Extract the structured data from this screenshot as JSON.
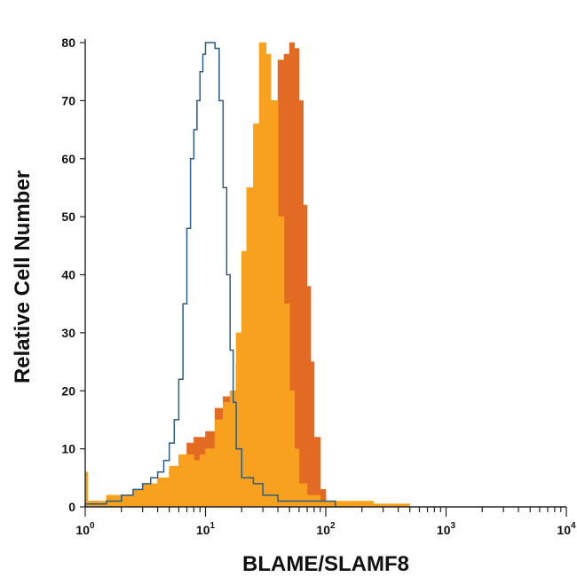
{
  "chart_data": {
    "type": "area",
    "title": "",
    "xlabel": "BLAME/SLAMF8",
    "ylabel": "Relative Cell Number",
    "x_scale": "log",
    "xlim": [
      1,
      10000
    ],
    "ylim": [
      0,
      80
    ],
    "grid": false,
    "legend": "none",
    "x_ticks": [
      {
        "value": 1,
        "base": "10",
        "exp": "0"
      },
      {
        "value": 10,
        "base": "10",
        "exp": "1"
      },
      {
        "value": 100,
        "base": "10",
        "exp": "2"
      },
      {
        "value": 1000,
        "base": "10",
        "exp": "3"
      },
      {
        "value": 10000,
        "base": "10",
        "exp": "4"
      }
    ],
    "y_ticks": [
      "0",
      "10",
      "20",
      "30",
      "40",
      "50",
      "60",
      "70",
      "80"
    ],
    "series": [
      {
        "style": "filled",
        "color": "#e26a22",
        "points": [
          [
            1,
            0
          ],
          [
            1.1,
            1
          ],
          [
            1.3,
            0.5
          ],
          [
            1.5,
            1
          ],
          [
            2,
            1.5
          ],
          [
            2.5,
            2
          ],
          [
            3,
            3
          ],
          [
            3.5,
            4
          ],
          [
            4,
            5
          ],
          [
            5,
            6
          ],
          [
            6,
            8
          ],
          [
            7,
            11
          ],
          [
            8,
            12
          ],
          [
            9,
            12
          ],
          [
            10,
            13
          ],
          [
            12,
            17
          ],
          [
            14,
            19
          ],
          [
            16,
            20
          ],
          [
            18,
            25
          ],
          [
            20,
            32
          ],
          [
            25,
            45
          ],
          [
            30,
            60
          ],
          [
            35,
            70
          ],
          [
            40,
            77
          ],
          [
            45,
            78
          ],
          [
            50,
            80
          ],
          [
            55,
            79
          ],
          [
            60,
            70
          ],
          [
            65,
            52
          ],
          [
            70,
            38
          ],
          [
            75,
            25
          ],
          [
            80,
            12
          ],
          [
            90,
            3
          ],
          [
            100,
            1
          ],
          [
            110,
            0
          ]
        ]
      },
      {
        "style": "filled",
        "color": "#f8a11e",
        "points": [
          [
            1,
            6
          ],
          [
            1.05,
            1
          ],
          [
            1.3,
            1
          ],
          [
            1.5,
            2
          ],
          [
            2,
            2
          ],
          [
            2.5,
            3
          ],
          [
            3,
            4
          ],
          [
            4,
            5
          ],
          [
            5,
            7
          ],
          [
            6,
            9
          ],
          [
            7,
            9
          ],
          [
            8,
            8
          ],
          [
            9,
            9
          ],
          [
            10,
            10
          ],
          [
            12,
            15
          ],
          [
            14,
            18
          ],
          [
            16,
            20
          ],
          [
            18,
            30
          ],
          [
            20,
            44
          ],
          [
            22,
            55
          ],
          [
            25,
            66
          ],
          [
            28,
            80
          ],
          [
            30,
            80
          ],
          [
            32,
            78
          ],
          [
            35,
            70
          ],
          [
            40,
            50
          ],
          [
            45,
            35
          ],
          [
            50,
            20
          ],
          [
            55,
            10
          ],
          [
            60,
            4
          ],
          [
            70,
            2
          ],
          [
            90,
            1
          ],
          [
            150,
            1
          ],
          [
            250,
            0.5
          ],
          [
            500,
            0.5
          ]
        ]
      },
      {
        "style": "outline",
        "color": "#2b5c82",
        "points": [
          [
            1,
            0.5
          ],
          [
            1.5,
            1
          ],
          [
            2,
            2
          ],
          [
            2.5,
            3
          ],
          [
            3,
            4
          ],
          [
            3.5,
            5
          ],
          [
            4,
            6
          ],
          [
            4.5,
            8
          ],
          [
            5,
            11
          ],
          [
            5.5,
            15
          ],
          [
            6,
            22
          ],
          [
            6.5,
            35
          ],
          [
            7,
            48
          ],
          [
            7.5,
            60
          ],
          [
            8,
            65
          ],
          [
            8.5,
            70
          ],
          [
            9,
            75
          ],
          [
            9.5,
            78
          ],
          [
            10,
            80
          ],
          [
            11,
            80
          ],
          [
            12,
            79
          ],
          [
            13,
            70
          ],
          [
            14,
            55
          ],
          [
            15,
            40
          ],
          [
            16,
            27
          ],
          [
            17,
            18
          ],
          [
            18,
            10
          ],
          [
            20,
            5
          ],
          [
            25,
            4
          ],
          [
            30,
            2
          ],
          [
            40,
            1
          ],
          [
            60,
            1
          ],
          [
            100,
            1
          ],
          [
            120,
            0.5
          ]
        ]
      }
    ]
  }
}
